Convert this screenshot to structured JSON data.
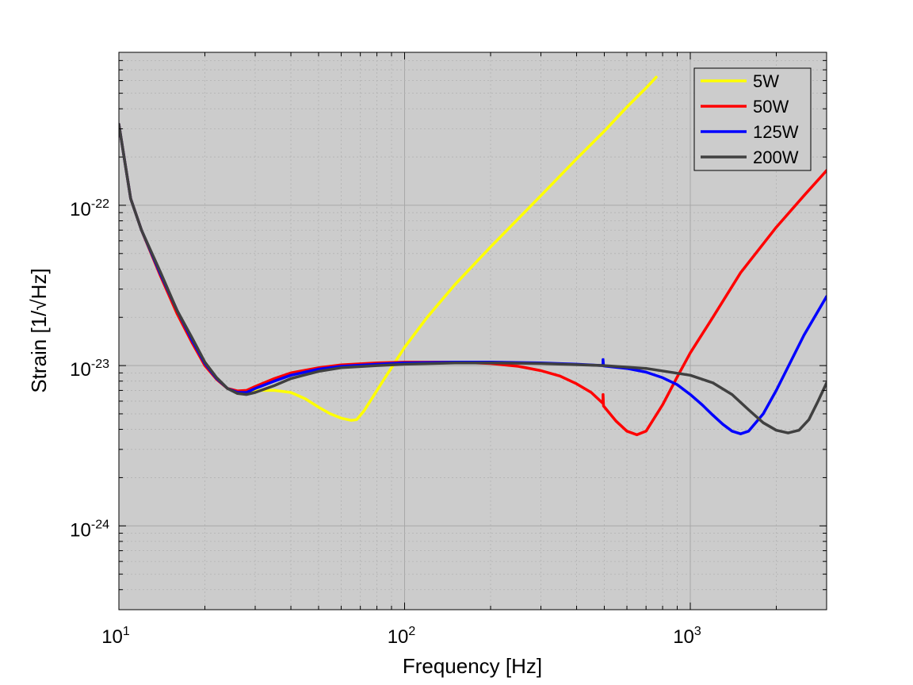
{
  "chart_data": {
    "type": "line",
    "title": "",
    "xlabel": "Frequency [Hz]",
    "ylabel": "Strain [1/√Hz]",
    "xscale": "log",
    "yscale": "log",
    "xlim": [
      10,
      3000
    ],
    "ylim": [
      3e-25,
      9e-22
    ],
    "x_ticks": [
      {
        "value": 10,
        "base": "10",
        "exp": "1"
      },
      {
        "value": 100,
        "base": "10",
        "exp": "2"
      },
      {
        "value": 1000,
        "base": "10",
        "exp": "3"
      }
    ],
    "y_ticks": [
      {
        "value": 1e-22,
        "base": "10",
        "exp": "-22"
      },
      {
        "value": 1e-23,
        "base": "10",
        "exp": "-23"
      },
      {
        "value": 1e-24,
        "base": "10",
        "exp": "-24"
      }
    ],
    "grid": true,
    "minor_grid": true,
    "background": "#cccccc",
    "legend_position": "top-right",
    "series": [
      {
        "name": "5W",
        "color": "#ffff00",
        "x": [
          10,
          11,
          12,
          14,
          16,
          18,
          20,
          22,
          24,
          26,
          28,
          30,
          35,
          40,
          45,
          50,
          55,
          60,
          65,
          68,
          72,
          78,
          85,
          92,
          100,
          120,
          150,
          200,
          300,
          400,
          500,
          600,
          700,
          760
        ],
        "y": [
          3.2e-22,
          1.1e-22,
          7e-23,
          3.6e-23,
          2.1e-23,
          1.4e-23,
          1e-23,
          8.2e-24,
          7.2e-24,
          6.9e-24,
          6.9e-24,
          7e-24,
          7e-24,
          6.8e-24,
          6.2e-24,
          5.5e-24,
          5e-24,
          4.7e-24,
          4.55e-24,
          4.6e-24,
          5.2e-24,
          6.5e-24,
          8.3e-24,
          1.03e-23,
          1.3e-23,
          2e-23,
          3.2e-23,
          5.5e-23,
          1.15e-22,
          1.95e-22,
          2.9e-22,
          4.1e-22,
          5.4e-22,
          6.3e-22
        ]
      },
      {
        "name": "50W",
        "color": "#ff0000",
        "x": [
          10,
          11,
          12,
          14,
          16,
          18,
          20,
          22,
          24,
          26,
          28,
          30,
          35,
          40,
          50,
          60,
          80,
          100,
          150,
          200,
          250,
          300,
          350,
          400,
          450,
          495,
          495,
          497,
          550,
          600,
          650,
          700,
          800,
          900,
          1000,
          1200,
          1500,
          2000,
          2500,
          3000
        ],
        "y": [
          3.2e-22,
          1.1e-22,
          7e-23,
          3.6e-23,
          2.1e-23,
          1.4e-23,
          1e-23,
          8.2e-24,
          7.2e-24,
          6.95e-24,
          7e-24,
          7.4e-24,
          8.3e-24,
          9e-24,
          9.7e-24,
          1.01e-23,
          1.04e-23,
          1.05e-23,
          1.05e-23,
          1.03e-23,
          9.9e-24,
          9.3e-24,
          8.6e-24,
          7.7e-24,
          6.8e-24,
          5.8e-24,
          6.6e-24,
          5.6e-24,
          4.5e-24,
          3.9e-24,
          3.7e-24,
          3.9e-24,
          5.7e-24,
          8.5e-24,
          1.2e-23,
          2e-23,
          3.8e-23,
          7.3e-23,
          1.15e-22,
          1.65e-22
        ]
      },
      {
        "name": "125W",
        "color": "#0000ff",
        "x": [
          10,
          11,
          12,
          14,
          16,
          18,
          20,
          22,
          24,
          26,
          28,
          30,
          35,
          40,
          50,
          60,
          80,
          100,
          150,
          200,
          300,
          400,
          495,
          495,
          497,
          600,
          700,
          800,
          900,
          1000,
          1100,
          1200,
          1300,
          1400,
          1500,
          1600,
          1800,
          2000,
          2500,
          3000
        ],
        "y": [
          3.2e-22,
          1.1e-22,
          7e-23,
          3.7e-23,
          2.2e-23,
          1.45e-23,
          1.03e-23,
          8.3e-24,
          7.2e-24,
          6.8e-24,
          6.8e-24,
          7.2e-24,
          8e-24,
          8.7e-24,
          9.5e-24,
          9.9e-24,
          1.02e-23,
          1.04e-23,
          1.05e-23,
          1.05e-23,
          1.04e-23,
          1.02e-23,
          1e-23,
          1.09e-23,
          9.95e-24,
          9.6e-24,
          9.1e-24,
          8.4e-24,
          7.6e-24,
          6.6e-24,
          5.7e-24,
          4.9e-24,
          4.3e-24,
          3.9e-24,
          3.75e-24,
          3.9e-24,
          5e-24,
          7e-24,
          1.55e-23,
          2.7e-23
        ]
      },
      {
        "name": "200W",
        "color": "#404040",
        "x": [
          10,
          11,
          12,
          14,
          16,
          18,
          20,
          22,
          24,
          26,
          28,
          30,
          35,
          40,
          50,
          60,
          80,
          100,
          150,
          200,
          300,
          500,
          700,
          1000,
          1200,
          1400,
          1600,
          1800,
          2000,
          2200,
          2400,
          2600,
          2800,
          3000
        ],
        "y": [
          3.2e-22,
          1.1e-22,
          7e-23,
          3.8e-23,
          2.2e-23,
          1.5e-23,
          1.05e-23,
          8.4e-24,
          7.2e-24,
          6.7e-24,
          6.6e-24,
          6.8e-24,
          7.5e-24,
          8.3e-24,
          9.2e-24,
          9.7e-24,
          1e-23,
          1.02e-23,
          1.04e-23,
          1.04e-23,
          1.03e-23,
          1e-23,
          9.6e-24,
          8.7e-24,
          7.8e-24,
          6.6e-24,
          5.3e-24,
          4.4e-24,
          3.95e-24,
          3.8e-24,
          3.95e-24,
          4.6e-24,
          6e-24,
          7.8e-24
        ]
      }
    ]
  }
}
